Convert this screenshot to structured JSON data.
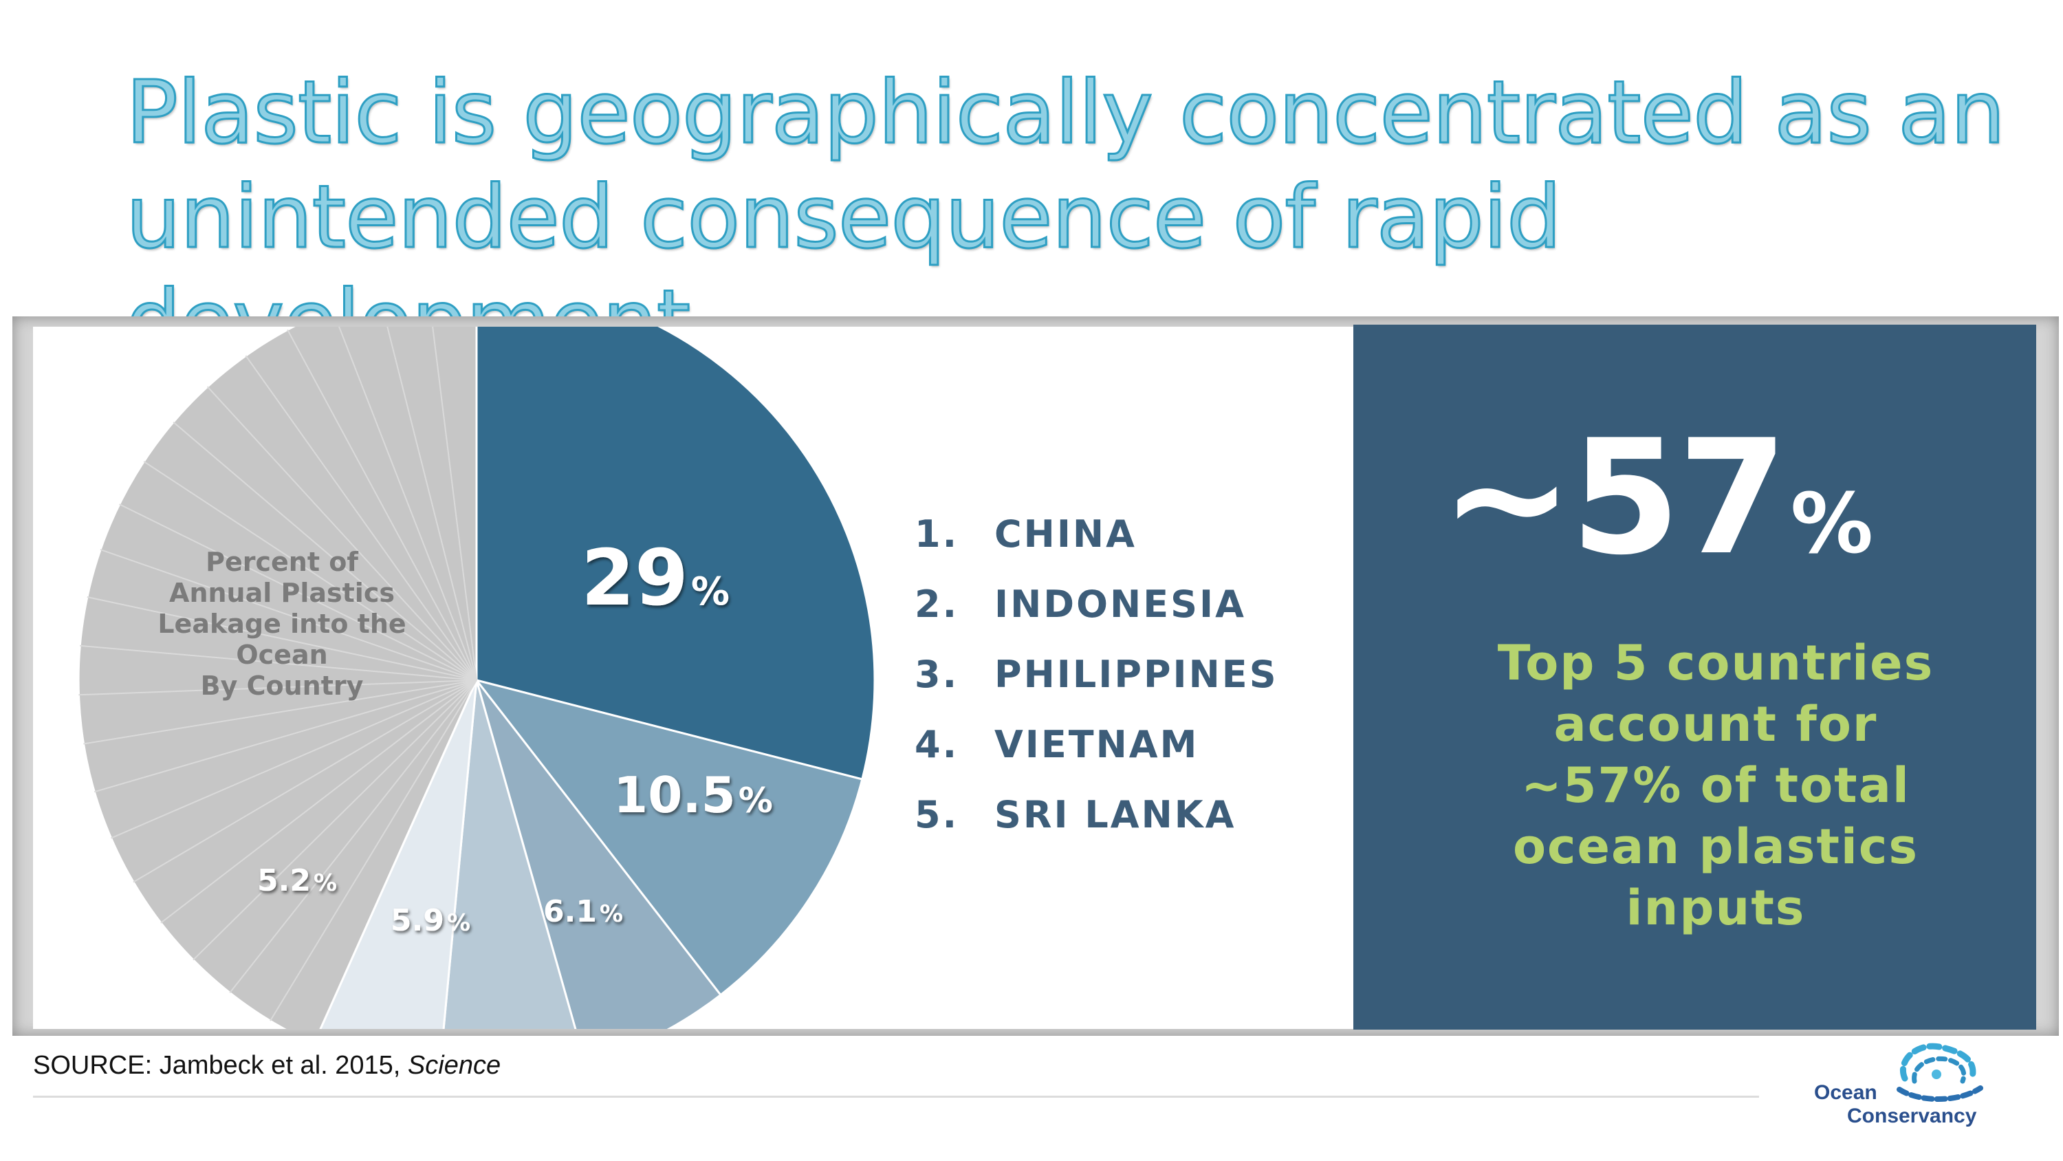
{
  "title": "Plastic is geographically concentrated as an unintended consequence of rapid development",
  "chart_data": {
    "type": "pie",
    "title": "Percent of\nAnnual Plastics\nLeakage into the\nOcean\nBy Country",
    "slices": [
      {
        "label": "29%",
        "value": 29,
        "color": "#336b8d"
      },
      {
        "label": "10.5%",
        "value": 10.5,
        "color": "#7da3ba"
      },
      {
        "label": "6.1%",
        "value": 6.1,
        "color": "#94afc2"
      },
      {
        "label": "5.9%",
        "value": 5.9,
        "color": "#b7c9d6"
      },
      {
        "label": "5.2%",
        "value": 5.2,
        "color": "#e3eaf0"
      },
      {
        "label": "",
        "value": 43.3,
        "color": "#c6c6c6"
      }
    ]
  },
  "top_countries": [
    {
      "rank": "1.",
      "name": "CHINA"
    },
    {
      "rank": "2.",
      "name": "INDONESIA"
    },
    {
      "rank": "3.",
      "name": "PHILIPPINES"
    },
    {
      "rank": "4.",
      "name": "VIETNAM"
    },
    {
      "rank": "5.",
      "name": "SRI LANKA"
    }
  ],
  "stat": {
    "value": "~57",
    "unit": "%",
    "description": "Top 5 countries\naccount for\n~57% of total\nocean plastics\ninputs"
  },
  "source": {
    "prefix": "SOURCE: Jambeck et al. 2015, ",
    "journal": "Science"
  },
  "logo": {
    "line1": "Ocean",
    "line2": "Conservancy"
  },
  "colors": {
    "title": "#2e9fc3",
    "stat_panel": "#385c79",
    "stat_text": "#b5d36e",
    "country_text": "#3d5d79"
  }
}
